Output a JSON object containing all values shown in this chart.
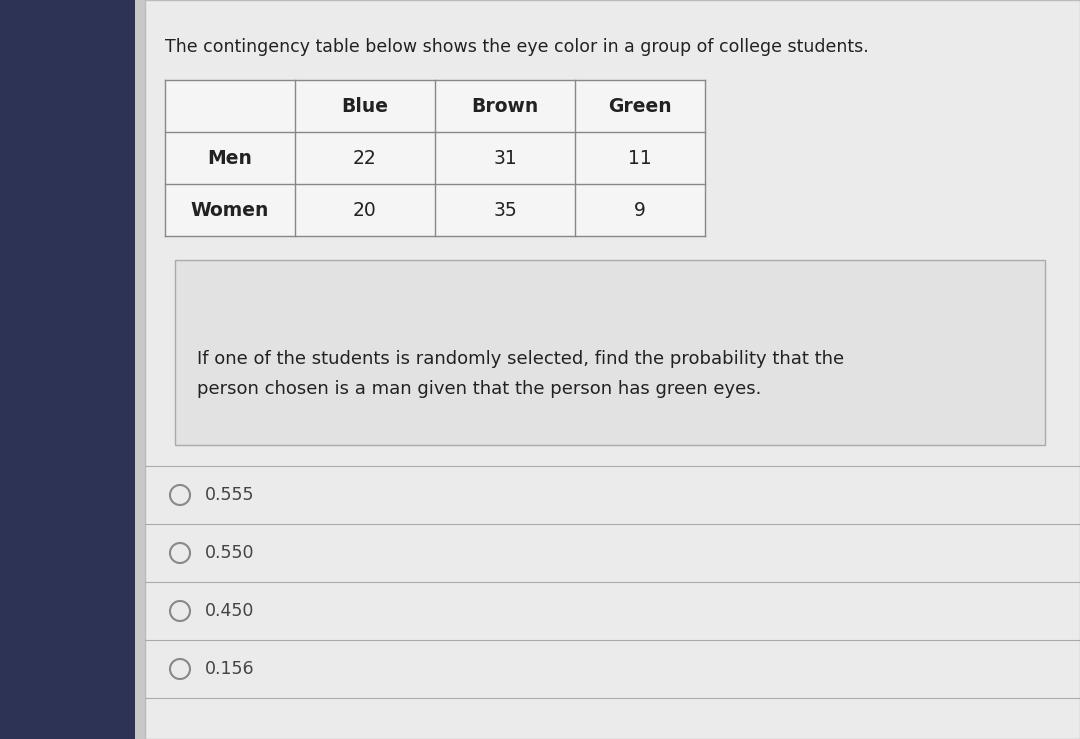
{
  "title": "The contingency table below shows the eye color in a group of college students.",
  "title_fontsize": 12.5,
  "table_headers": [
    "",
    "Blue",
    "Brown",
    "Green"
  ],
  "table_rows": [
    [
      "Men",
      "22",
      "31",
      "11"
    ],
    [
      "Women",
      "20",
      "35",
      "9"
    ]
  ],
  "question_text_line1": "If one of the students is randomly selected, find the probability that the",
  "question_text_line2": "person chosen is a man given that the person has green eyes.",
  "choices": [
    "0.555",
    "0.550",
    "0.450",
    "0.156"
  ],
  "sidebar_color": "#2c3354",
  "bg_color": "#c8c8c8",
  "card_color": "#ebebeb",
  "question_box_color": "#e2e2e2",
  "table_border_color": "#888888",
  "text_color": "#222222",
  "choice_text_color": "#444444",
  "circle_color": "#888888",
  "separator_color": "#aaaaaa",
  "card_border_color": "#bbbbbb"
}
